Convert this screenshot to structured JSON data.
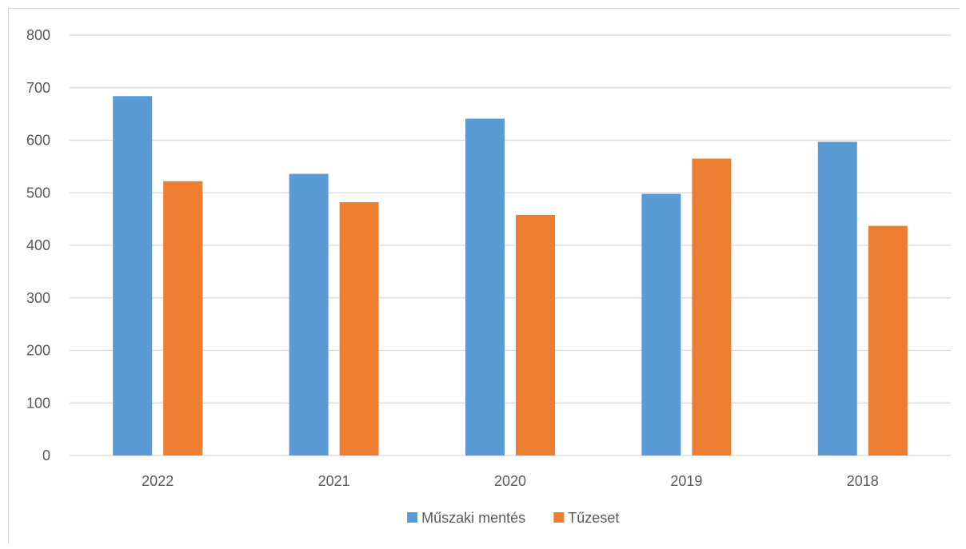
{
  "chart_data": {
    "type": "bar",
    "title": "",
    "xlabel": "",
    "ylabel": "",
    "categories": [
      "2022",
      "2021",
      "2020",
      "2019",
      "2018"
    ],
    "series": [
      {
        "name": "Műszaki mentés",
        "color": "#5b9bd5",
        "values": [
          684,
          536,
          641,
          498,
          597
        ]
      },
      {
        "name": "Tűzeset",
        "color": "#ed7d31",
        "values": [
          522,
          482,
          458,
          565,
          437
        ]
      }
    ],
    "ylim": [
      0,
      800
    ],
    "yticks": [
      "0",
      "100",
      "200",
      "300",
      "400",
      "500",
      "600",
      "700",
      "800"
    ],
    "grid": true,
    "gridColor": "#d9d9d9",
    "legend": "bottom-center"
  }
}
